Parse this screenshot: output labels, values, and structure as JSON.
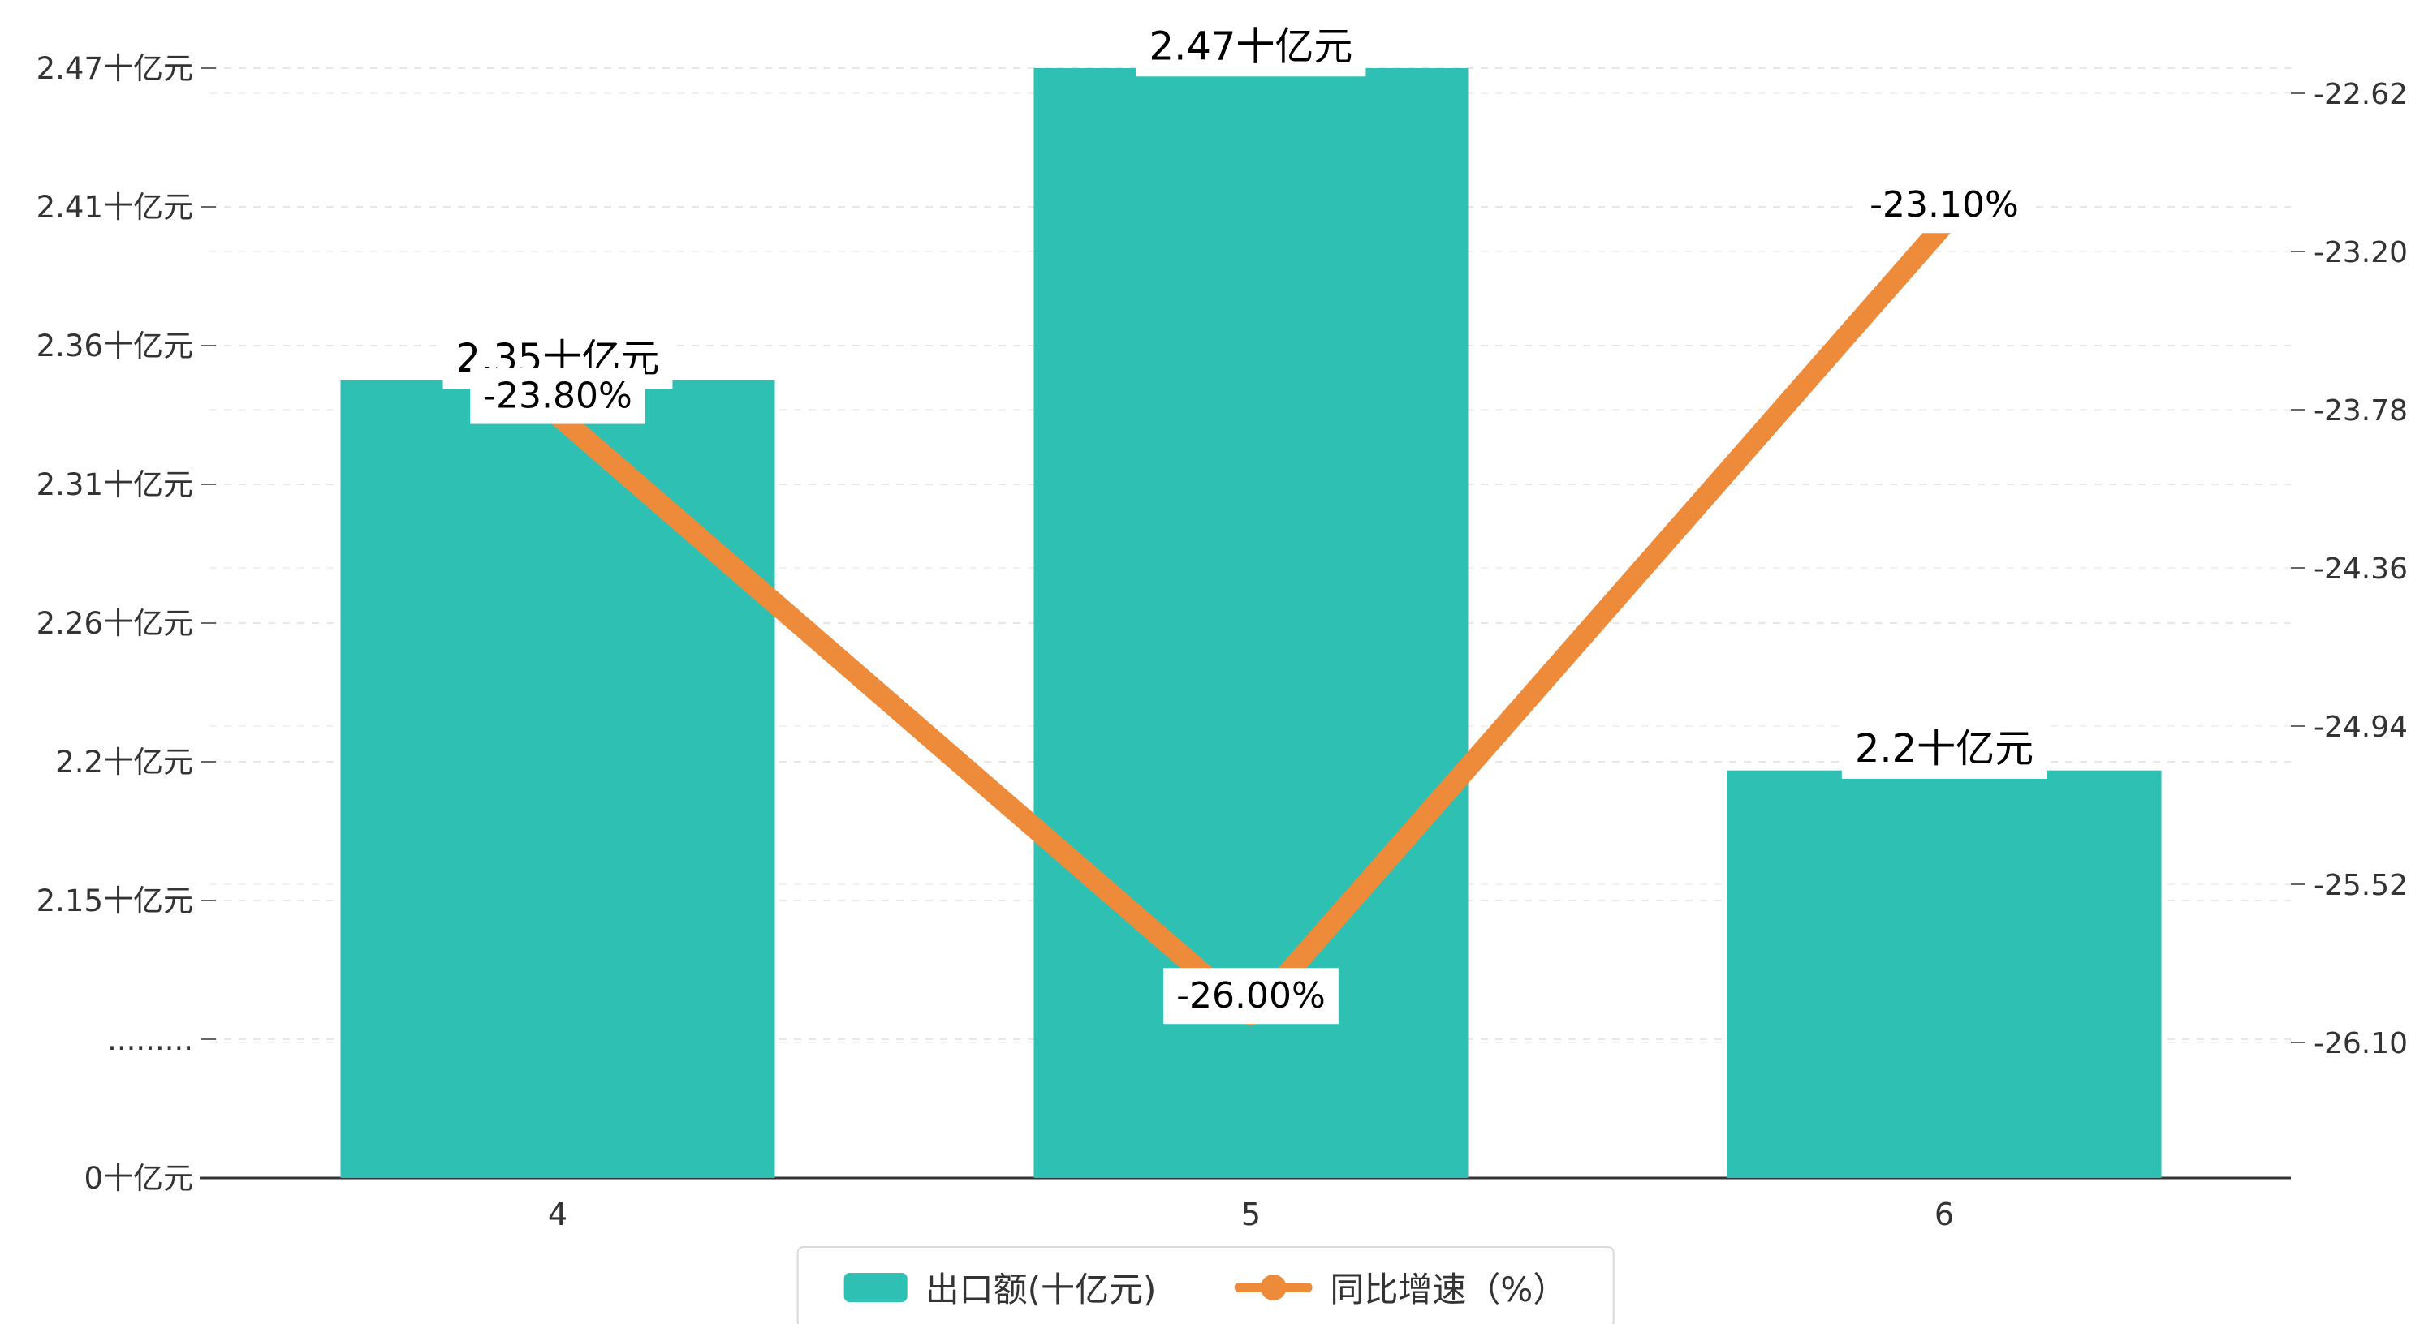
{
  "chart_data": {
    "type": "bar",
    "combo": "bar+line",
    "categories": [
      "4",
      "5",
      "6"
    ],
    "series": [
      {
        "name": "出口额(十亿元)",
        "type": "bar",
        "values": [
          2.35,
          2.47,
          2.2
        ],
        "labels": [
          "2.35十亿元",
          "2.47十亿元",
          "2.2十亿元"
        ],
        "color": "#2ec0b2"
      },
      {
        "name": "同比增速（%）",
        "type": "line",
        "values": [
          -23.8,
          -26.0,
          -23.1
        ],
        "labels": [
          "-23.80%",
          "-26.00%",
          "-23.10%"
        ],
        "color": "#ee8b3a"
      }
    ],
    "left_axis": {
      "tick_labels": [
        "0十亿元",
        ".........",
        "2.15十亿元",
        "2.2十亿元",
        "2.26十亿元",
        "2.31十亿元",
        "2.36十亿元",
        "2.41十亿元",
        "2.47十亿元"
      ],
      "tick_values": [
        0,
        null,
        2.15,
        2.2,
        2.26,
        2.31,
        2.36,
        2.41,
        2.47
      ],
      "axis_break": true,
      "unit": "十亿元"
    },
    "right_axis": {
      "tick_labels": [
        "-22.62",
        "-23.20",
        "-23.78",
        "-24.36",
        "-24.94",
        "-25.52",
        "-26.10"
      ],
      "max": -22.62,
      "min": -26.1,
      "unit": "%"
    },
    "xlabel": "",
    "ylabel": "",
    "title": "",
    "grid": "dashed-horizontal",
    "legend_position": "bottom",
    "legend": [
      {
        "label": "出口额(十亿元)",
        "color": "#2ec0b2",
        "marker": "square"
      },
      {
        "label": "同比增速（%）",
        "color": "#ee8b3a",
        "marker": "line-dot"
      }
    ],
    "colors": {
      "bar": "#2ec0b2",
      "line": "#ee8b3a",
      "axis_text": "#333333",
      "gridline": "#e7e7e7",
      "axis_line": "#333333",
      "label_text": "#000000",
      "label_bg": "#ffffff",
      "background": "#ffffff"
    }
  }
}
